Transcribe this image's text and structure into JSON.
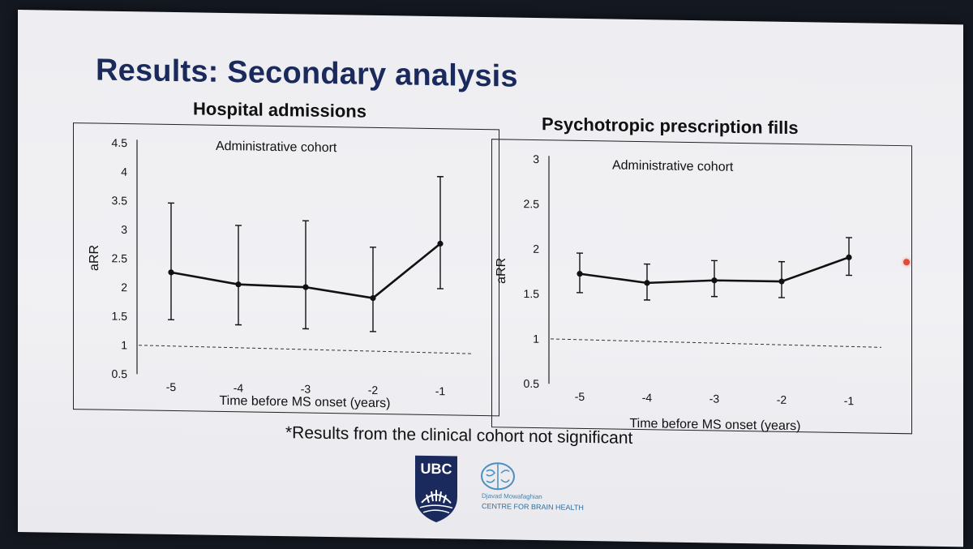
{
  "slide": {
    "title": "Results: Secondary analysis",
    "footnote": "*Results from the clinical cohort not significant"
  },
  "logos": {
    "ubc_text": "UBC",
    "centre_line1": "Djavad Mowafaghian",
    "centre_line2": "CENTRE FOR BRAIN HEALTH"
  },
  "colors": {
    "title": "#1b2a5c",
    "line": "#111111",
    "reference": "#333333",
    "logo_blue": "#1b2a5c",
    "centre_blue": "#2f6e9c"
  },
  "chart_data": [
    {
      "type": "line",
      "title": "Hospital admissions",
      "annotation": "Administrative cohort",
      "xlabel": "Time before MS onset (years)",
      "ylabel": "aRR",
      "categories": [
        "-5",
        "-4",
        "-3",
        "-2",
        "-1"
      ],
      "yticks": [
        "4.5",
        "4",
        "3.5",
        "3",
        "2.5",
        "2",
        "1.5",
        "1",
        "0.5"
      ],
      "ylim": [
        0.5,
        4.5
      ],
      "reference_line": 1,
      "series": [
        {
          "values": [
            2.27,
            2.08,
            2.05,
            1.88,
            2.84
          ],
          "ci_lower": [
            1.45,
            1.38,
            1.33,
            1.3,
            2.06
          ],
          "ci_upper": [
            3.47,
            3.1,
            3.2,
            2.76,
            4.0
          ]
        }
      ]
    },
    {
      "type": "line",
      "title": "Psychotropic prescription fills",
      "annotation": "Administrative cohort",
      "xlabel": "Time before MS onset (years)",
      "ylabel": "aRR",
      "categories": [
        "-5",
        "-4",
        "-3",
        "-2",
        "-1"
      ],
      "yticks": [
        "3",
        "2.5",
        "2",
        "1.5",
        "1",
        "0.5"
      ],
      "ylim": [
        0.5,
        3
      ],
      "reference_line": 1,
      "series": [
        {
          "values": [
            1.73,
            1.64,
            1.68,
            1.68,
            1.96
          ],
          "ci_lower": [
            1.52,
            1.45,
            1.5,
            1.5,
            1.76
          ],
          "ci_upper": [
            1.96,
            1.85,
            1.9,
            1.9,
            2.18
          ]
        }
      ]
    }
  ]
}
